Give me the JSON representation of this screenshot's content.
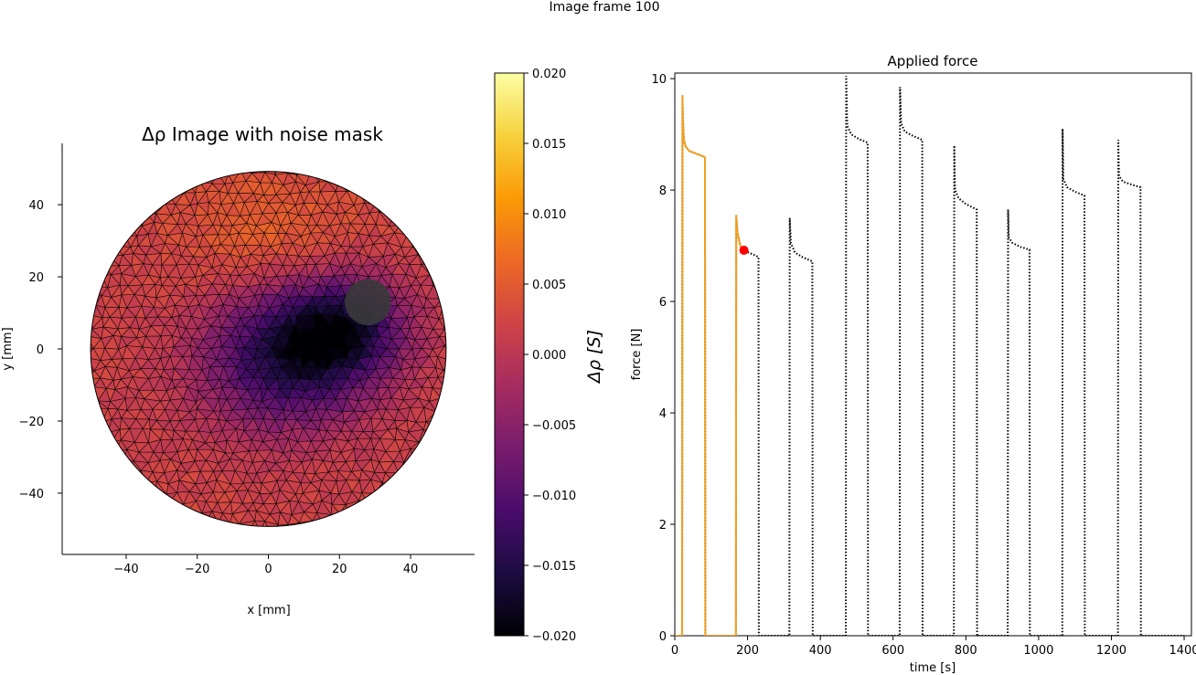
{
  "figure": {
    "suptitle": "Image frame 100"
  },
  "chart_data": [
    {
      "type": "heatmap",
      "subtype": "triangular-mesh-image",
      "title": "Δρ Image with noise mask",
      "xlabel": "x [mm]",
      "ylabel": "y [mm]",
      "xlim": [
        -58,
        58
      ],
      "ylim": [
        -57,
        57
      ],
      "xticks": [
        -40,
        -20,
        0,
        20,
        40
      ],
      "yticks": [
        -40,
        -20,
        0,
        20,
        40
      ],
      "grid": false,
      "domain": {
        "shape": "circle",
        "center": [
          0,
          0
        ],
        "radius": 50
      },
      "noise_mask": {
        "center": [
          28,
          13
        ],
        "radius": 6.5,
        "color": "#3a3a3a"
      },
      "field_features": [
        {
          "kind": "background",
          "value": 0.002
        },
        {
          "kind": "minimum",
          "center": [
            5,
            -2
          ],
          "value": -0.015
        },
        {
          "kind": "minimum-band",
          "center": [
            22,
            6
          ],
          "value": -0.012
        },
        {
          "kind": "maximum",
          "center": [
            0,
            30
          ],
          "value": 0.006
        }
      ],
      "colormap": "inferno",
      "colorbar": {
        "label": "Δρ [S]",
        "range": [
          -0.02,
          0.02
        ],
        "ticks": [
          "0.020",
          "0.015",
          "0.010",
          "0.005",
          "0.000",
          "−0.005",
          "−0.010",
          "−0.015",
          "−0.020"
        ],
        "tick_values": [
          0.02,
          0.015,
          0.01,
          0.005,
          0,
          -0.005,
          -0.01,
          -0.015,
          -0.02
        ]
      }
    },
    {
      "type": "line",
      "title": "Applied force",
      "xlabel": "time [s]",
      "ylabel": "force [N]",
      "xlim": [
        0,
        1420
      ],
      "ylim": [
        0,
        10.1
      ],
      "xticks": [
        0,
        200,
        400,
        600,
        800,
        1000,
        1200,
        1400
      ],
      "yticks": [
        0,
        2,
        4,
        6,
        8,
        10
      ],
      "grid": false,
      "series": [
        {
          "style": "dotted",
          "color": "#000000",
          "x": [
            0,
            20,
            21,
            22,
            25,
            30,
            40,
            60,
            80,
            83,
            84,
            150,
            168,
            169,
            172,
            180,
            190,
            205,
            220,
            230,
            231,
            300,
            315,
            316,
            319,
            330,
            350,
            378,
            379,
            455,
            470,
            471,
            474,
            485,
            505,
            530,
            531,
            605,
            618,
            619,
            622,
            632,
            655,
            680,
            681,
            752,
            767,
            768,
            770,
            780,
            800,
            830,
            831,
            900,
            915,
            916,
            918,
            928,
            950,
            975,
            976,
            1050,
            1065,
            1066,
            1068,
            1078,
            1100,
            1126,
            1127,
            1200,
            1218,
            1219,
            1221,
            1232,
            1255,
            1280,
            1281,
            1400
          ],
          "y": [
            0,
            0,
            9.7,
            9.3,
            8.9,
            8.78,
            8.7,
            8.65,
            8.6,
            8.58,
            0,
            0,
            0,
            7.55,
            7.25,
            7.0,
            6.92,
            6.87,
            6.83,
            6.8,
            0,
            0,
            0,
            7.5,
            7.05,
            6.88,
            6.8,
            6.72,
            0,
            0,
            0,
            10.05,
            9.15,
            9.0,
            8.92,
            8.85,
            0,
            0,
            0,
            9.85,
            9.2,
            9.05,
            8.97,
            8.9,
            0,
            0,
            0,
            8.8,
            8.0,
            7.85,
            7.75,
            7.65,
            0,
            0,
            0,
            7.65,
            7.15,
            7.05,
            6.98,
            6.93,
            0,
            0,
            0,
            9.1,
            8.2,
            8.05,
            7.97,
            7.9,
            0,
            0,
            0,
            8.9,
            8.25,
            8.15,
            8.1,
            8.05,
            0,
            0
          ]
        },
        {
          "style": "solid",
          "color": "#f0a020",
          "x": [
            0,
            20,
            21,
            22,
            25,
            30,
            40,
            60,
            80,
            83,
            84,
            150,
            168,
            169,
            172,
            180,
            190
          ],
          "y": [
            0,
            0,
            9.7,
            9.3,
            8.9,
            8.78,
            8.7,
            8.65,
            8.6,
            8.58,
            0,
            0,
            0,
            7.55,
            7.25,
            7.0,
            6.92
          ]
        }
      ],
      "current_point": {
        "x": 190,
        "y": 6.92,
        "color": "#ff0000"
      }
    }
  ]
}
